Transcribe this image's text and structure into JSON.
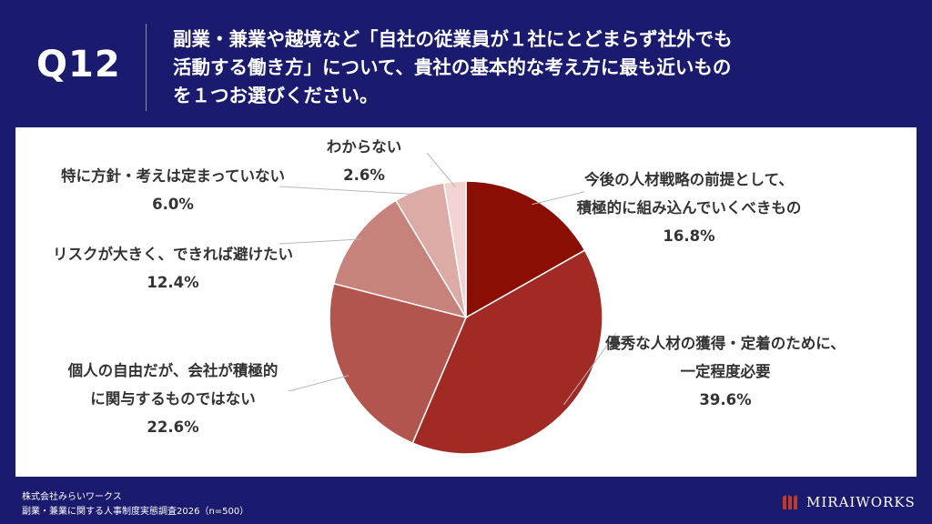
{
  "header": {
    "question_number": "Q12",
    "question_lines": [
      "副業・兼業や越境など「自社の従業員が１社にとどまらず社外でも",
      "活動する働き方」について、貴社の基本的な考え方に最も近いもの",
      "を１つお選びください。"
    ]
  },
  "chart_data": {
    "type": "pie",
    "title": "",
    "slices": [
      {
        "label_lines": [
          "今後の人材戦略の前提として、",
          "積極的に組み込んでいくべきもの"
        ],
        "value": 16.8,
        "value_label": "16.8%",
        "color": "#8b0e04"
      },
      {
        "label_lines": [
          "優秀な人材の獲得・定着のために、",
          "一定程度必要"
        ],
        "value": 39.6,
        "value_label": "39.6%",
        "color": "#a12a25"
      },
      {
        "label_lines": [
          "個人の自由だが、会社が積極的",
          "に関与するものではない"
        ],
        "value": 22.6,
        "value_label": "22.6%",
        "color": "#b3554f"
      },
      {
        "label_lines": [
          "リスクが大きく、できれば避けたい"
        ],
        "value": 12.4,
        "value_label": "12.4%",
        "color": "#c6827b"
      },
      {
        "label_lines": [
          "特に方針・考えは定まっていない"
        ],
        "value": 6.0,
        "value_label": "6.0%",
        "color": "#dcaba6"
      },
      {
        "label_lines": [
          "わからない"
        ],
        "value": 2.6,
        "value_label": "2.6%",
        "color": "#f2d3d1"
      }
    ],
    "start_angle_deg": 0,
    "direction": "clockwise"
  },
  "footer": {
    "company": "株式会社みらいワークス",
    "survey": "副業・兼業に関する人事制度実態調査2026（n=500）"
  },
  "logo": {
    "text": "MIRAIWORKS",
    "icon": "mirai-works-logo-icon",
    "color": "#c0392b"
  }
}
